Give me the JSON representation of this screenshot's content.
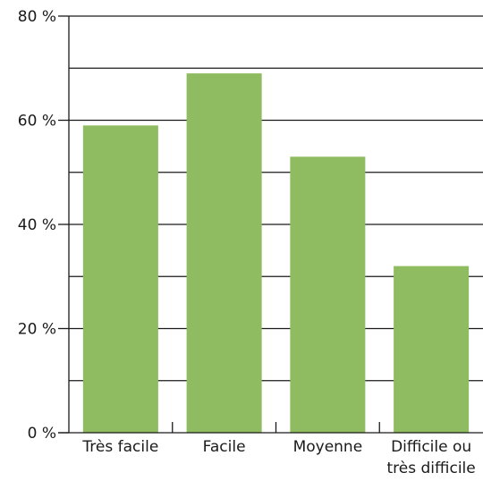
{
  "chart_data": {
    "type": "bar",
    "categories": [
      [
        "Très facile"
      ],
      [
        "Facile"
      ],
      [
        "Moyenne"
      ],
      [
        "Difficile ou",
        "très difficile"
      ]
    ],
    "values": [
      59,
      69,
      53,
      32
    ],
    "ylim": [
      0,
      80
    ],
    "y_ticks": [
      {
        "value": 0,
        "label": "0 %"
      },
      {
        "value": 20,
        "label": "20 %"
      },
      {
        "value": 40,
        "label": "40 %"
      },
      {
        "value": 60,
        "label": "60 %"
      },
      {
        "value": 80,
        "label": "80 %"
      }
    ],
    "gridlines": [
      10,
      20,
      30,
      40,
      50,
      60,
      70,
      80
    ],
    "grid": true,
    "legend": "none",
    "colors": {
      "bar": "#8fbc61",
      "grid": "#1a1a1a",
      "text": "#1a1a1a"
    }
  }
}
